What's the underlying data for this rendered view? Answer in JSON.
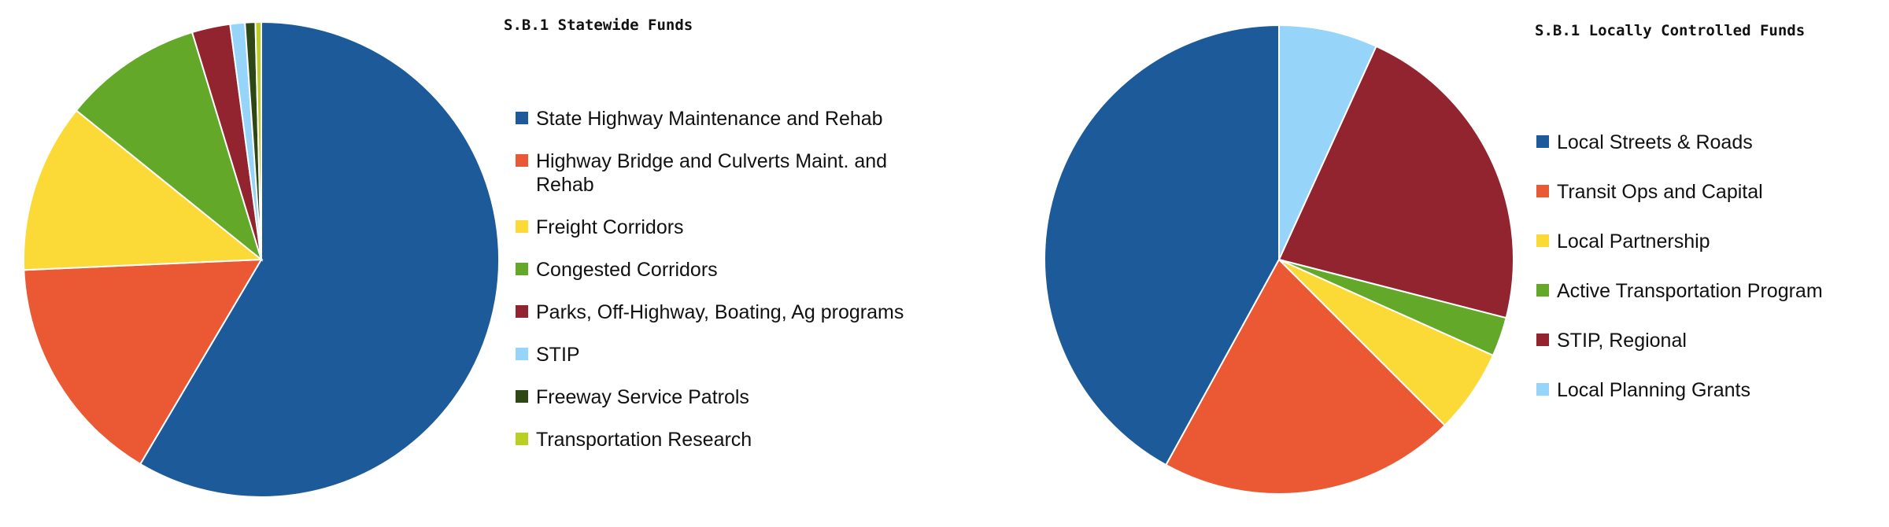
{
  "chart_data": [
    {
      "type": "pie",
      "title": "S.B.1 Statewide Funds",
      "start_angle_deg": 0,
      "direction": "clockwise",
      "slices": [
        {
          "label": "State Highway Maintenance and Rehab",
          "value": 58.5,
          "color": "#1c5a99"
        },
        {
          "label": "Highway Bridge and Culverts Maint. and Rehab",
          "value": 15.8,
          "color": "#ea5933"
        },
        {
          "label": "Freight Corridors",
          "value": 11.5,
          "color": "#fbd936"
        },
        {
          "label": "Congested Corridors",
          "value": 9.5,
          "color": "#63a829"
        },
        {
          "label": "Parks, Off-Highway, Boating, Ag programs",
          "value": 2.6,
          "color": "#922430"
        },
        {
          "label": "STIP",
          "value": 1.0,
          "color": "#96d4f9"
        },
        {
          "label": "Freeway Service Patrols",
          "value": 0.7,
          "color": "#2f4714"
        },
        {
          "label": "Transportation Research",
          "value": 0.4,
          "color": "#b9cf22"
        }
      ],
      "legend_lines": [
        [
          "State Highway Maintenance and Rehab"
        ],
        [
          "Highway Bridge and Culverts Maint. and",
          "Rehab"
        ],
        [
          "Freight Corridors"
        ],
        [
          "Congested Corridors"
        ],
        [
          "Parks, Off-Highway, Boating, Ag programs"
        ],
        [
          "STIP"
        ],
        [
          "Freeway Service Patrols"
        ],
        [
          "Transportation Research"
        ]
      ],
      "legend_placement": "right"
    },
    {
      "type": "pie",
      "title": "S.B.1 Locally Controlled Funds",
      "start_angle_deg": 0,
      "direction": "counterclockwise",
      "slices": [
        {
          "label": "Local Streets & Roads",
          "value": 42.0,
          "color": "#1c5a99"
        },
        {
          "label": "Transit Ops and Capital",
          "value": 20.5,
          "color": "#ea5933"
        },
        {
          "label": "Local Partnership",
          "value": 5.8,
          "color": "#fbd936"
        },
        {
          "label": "Active Transportation Program",
          "value": 2.7,
          "color": "#63a829"
        },
        {
          "label": "STIP, Regional",
          "value": 22.2,
          "color": "#922430"
        },
        {
          "label": "Local Planning Grants",
          "value": 6.8,
          "color": "#96d4f9"
        }
      ],
      "legend_lines": [
        [
          "Local Streets & Roads"
        ],
        [
          "Transit Ops and Capital"
        ],
        [
          "Local Partnership"
        ],
        [
          "Active Transportation Program"
        ],
        [
          "STIP, Regional"
        ],
        [
          "Local Planning Grants"
        ]
      ],
      "legend_placement": "right"
    }
  ]
}
